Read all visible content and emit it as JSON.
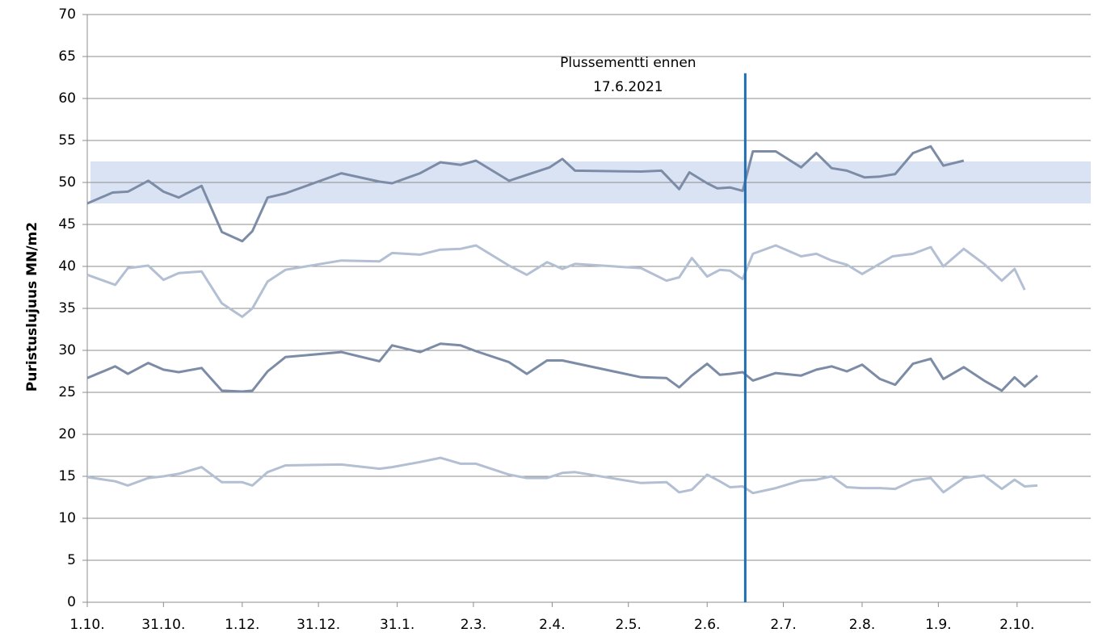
{
  "chart_data": {
    "type": "line",
    "y_label": "Puristuslujuus  MN/m2",
    "annotation": [
      "Plussementti ennen",
      "17.6.2021"
    ],
    "xlim": [
      0,
      395
    ],
    "xticks": [
      {
        "value": 0,
        "label": "1.10."
      },
      {
        "value": 30,
        "label": "31.10."
      },
      {
        "value": 61,
        "label": "1.12."
      },
      {
        "value": 91,
        "label": "31.12."
      },
      {
        "value": 122,
        "label": "31.1."
      },
      {
        "value": 152,
        "label": "2.3."
      },
      {
        "value": 183,
        "label": "2.4."
      },
      {
        "value": 213,
        "label": "2.5."
      },
      {
        "value": 244,
        "label": "2.6."
      },
      {
        "value": 274,
        "label": "2.7."
      },
      {
        "value": 305,
        "label": "2.8."
      },
      {
        "value": 335,
        "label": "1.9."
      },
      {
        "value": 366,
        "label": "2.10."
      }
    ],
    "ylim": [
      0,
      70
    ],
    "yticks": [
      0,
      5,
      10,
      15,
      20,
      25,
      30,
      35,
      40,
      45,
      50,
      55,
      60,
      65,
      70
    ],
    "grid": true,
    "band": [
      47.5,
      52.5
    ],
    "band_color": "#dae3f3",
    "vline": {
      "x": 259,
      "top": 63,
      "color": "#1f6fb0"
    },
    "series": [
      {
        "color": "#7d8ca6",
        "x": [
          0,
          10,
          16,
          24,
          30,
          36,
          45,
          53,
          61,
          65,
          71,
          78,
          100,
          115,
          120,
          131,
          139,
          147,
          153,
          166,
          175,
          182,
          187,
          192,
          218,
          226,
          233,
          237,
          244,
          248,
          253,
          258,
          262,
          271,
          281,
          287,
          293,
          299,
          306,
          312,
          318,
          325,
          332,
          337,
          345
        ],
        "values": [
          47.5,
          48.8,
          48.9,
          50.2,
          48.9,
          48.2,
          49.6,
          44.1,
          43.0,
          44.2,
          48.2,
          48.7,
          51.1,
          50.1,
          49.9,
          51.1,
          52.4,
          52.1,
          52.6,
          50.2,
          51.1,
          51.8,
          52.8,
          51.4,
          51.3,
          51.4,
          49.2,
          51.2,
          49.9,
          49.3,
          49.4,
          49.0,
          53.7,
          53.7,
          51.8,
          53.5,
          51.7,
          51.4,
          50.6,
          50.7,
          51.0,
          53.5,
          54.3,
          52.0,
          52.6
        ]
      },
      {
        "color": "#b3bfd2",
        "x": [
          0,
          11,
          16,
          24,
          30,
          36,
          45,
          53,
          61,
          65,
          71,
          78,
          100,
          115,
          120,
          131,
          139,
          147,
          153,
          166,
          173,
          181,
          187,
          192,
          218,
          228,
          233,
          238,
          244,
          249,
          253,
          258,
          262,
          271,
          281,
          287,
          293,
          299,
          305,
          317,
          325,
          332,
          337,
          345,
          353,
          360,
          365,
          369
        ],
        "values": [
          39.0,
          37.8,
          39.8,
          40.1,
          38.4,
          39.2,
          39.4,
          35.6,
          34.0,
          35.0,
          38.2,
          39.6,
          40.7,
          40.6,
          41.6,
          41.4,
          42.0,
          42.1,
          42.5,
          40.1,
          39.0,
          40.5,
          39.7,
          40.3,
          39.8,
          38.3,
          38.7,
          41.0,
          38.8,
          39.6,
          39.5,
          38.5,
          41.5,
          42.5,
          41.2,
          41.5,
          40.7,
          40.2,
          39.1,
          41.2,
          41.5,
          42.3,
          40.0,
          42.1,
          40.3,
          38.3,
          39.7,
          37.2
        ]
      },
      {
        "color": "#7d8ca6",
        "x": [
          0,
          11,
          16,
          24,
          30,
          36,
          45,
          53,
          61,
          65,
          71,
          78,
          100,
          115,
          120,
          131,
          139,
          147,
          153,
          166,
          173,
          181,
          187,
          218,
          228,
          233,
          238,
          244,
          249,
          253,
          258,
          262,
          271,
          281,
          287,
          293,
          299,
          305,
          312,
          318,
          325,
          332,
          337,
          345,
          353,
          360,
          365,
          369,
          374
        ],
        "values": [
          26.7,
          28.1,
          27.2,
          28.5,
          27.7,
          27.4,
          27.9,
          25.2,
          25.1,
          25.2,
          27.5,
          29.2,
          29.8,
          28.7,
          30.6,
          29.8,
          30.8,
          30.6,
          29.9,
          28.6,
          27.2,
          28.8,
          28.8,
          26.8,
          26.7,
          25.6,
          27.0,
          28.4,
          27.1,
          27.2,
          27.4,
          26.4,
          27.3,
          27.0,
          27.7,
          28.1,
          27.5,
          28.3,
          26.6,
          25.9,
          28.4,
          29.0,
          26.6,
          28.0,
          26.4,
          25.2,
          26.8,
          25.7,
          27.0
        ]
      },
      {
        "color": "#b3bfd2",
        "x": [
          0,
          11,
          16,
          24,
          30,
          36,
          45,
          53,
          61,
          65,
          71,
          78,
          100,
          115,
          120,
          131,
          139,
          147,
          153,
          166,
          173,
          181,
          187,
          192,
          218,
          228,
          233,
          238,
          244,
          249,
          253,
          258,
          262,
          271,
          281,
          287,
          293,
          299,
          305,
          312,
          318,
          325,
          332,
          337,
          345,
          353,
          360,
          365,
          369,
          374
        ],
        "values": [
          14.9,
          14.4,
          13.9,
          14.8,
          15.0,
          15.3,
          16.1,
          14.3,
          14.3,
          13.9,
          15.5,
          16.3,
          16.4,
          15.9,
          16.1,
          16.7,
          17.2,
          16.5,
          16.5,
          15.2,
          14.8,
          14.8,
          15.4,
          15.5,
          14.2,
          14.3,
          13.1,
          13.4,
          15.2,
          14.4,
          13.7,
          13.8,
          13.0,
          13.6,
          14.5,
          14.6,
          15.0,
          13.7,
          13.6,
          13.6,
          13.5,
          14.5,
          14.8,
          13.1,
          14.8,
          15.1,
          13.5,
          14.6,
          13.8,
          13.9
        ]
      }
    ]
  }
}
